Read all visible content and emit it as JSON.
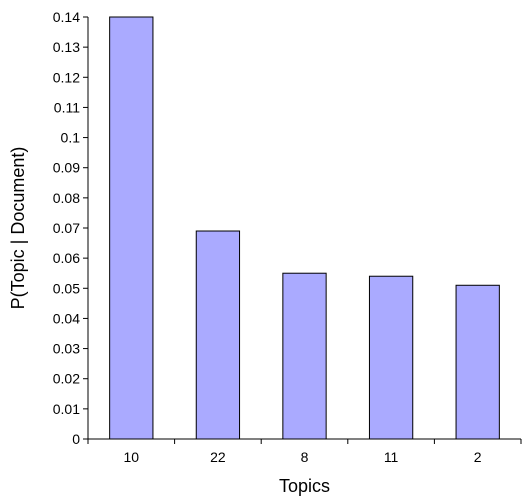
{
  "chart_data": {
    "type": "bar",
    "title": "",
    "xlabel": "Topics",
    "ylabel": "P(Topic | Document)",
    "categories": [
      "10",
      "22",
      "8",
      "11",
      "2"
    ],
    "values": [
      0.14,
      0.069,
      0.055,
      0.054,
      0.051
    ],
    "ylim": [
      0,
      0.14
    ],
    "yticks": [
      0,
      0.01,
      0.02,
      0.03,
      0.04,
      0.05,
      0.06,
      0.07,
      0.08,
      0.09,
      0.1,
      0.11,
      0.12,
      0.13,
      0.14
    ],
    "grid": false,
    "legend": "none",
    "colors": {
      "bar_fill": "#aaaaff",
      "bar_stroke": "#000000",
      "axis": "#000000"
    }
  }
}
